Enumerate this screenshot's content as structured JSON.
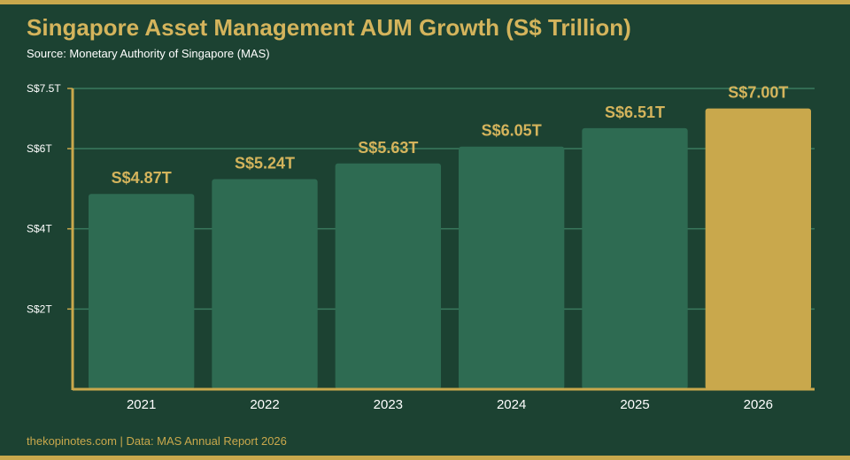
{
  "header": {
    "title": "Singapore Asset Management AUM Growth (S$ Trillion)",
    "source": "Source: Monetary Authority of Singapore (MAS)"
  },
  "footer": {
    "text": "thekopinotes.com | Data: MAS Annual Report 2026"
  },
  "colors": {
    "background": "#1c4232",
    "bar": "#2e6b52",
    "highlight_bar": "#c9a84c",
    "accent": "#d4b45c",
    "gridline": "#3a7a5e"
  },
  "chart_data": {
    "type": "bar",
    "title": "Singapore Asset Management AUM Growth (S$ Trillion)",
    "xlabel": "",
    "ylabel": "",
    "categories": [
      "2021",
      "2022",
      "2023",
      "2024",
      "2025",
      "2026"
    ],
    "values": [
      4.87,
      5.24,
      5.63,
      6.05,
      6.51,
      7.0
    ],
    "value_labels": [
      "S$4.87T",
      "S$5.24T",
      "S$5.63T",
      "S$6.05T",
      "S$6.51T",
      "S$7.00T"
    ],
    "highlight_index": 5,
    "ylim": [
      0,
      7.5
    ],
    "yticks": [
      {
        "value": 2,
        "label": "S$2T"
      },
      {
        "value": 4,
        "label": "S$4T"
      },
      {
        "value": 6,
        "label": "S$6T"
      },
      {
        "value": 7.5,
        "label": "S$7.5T"
      }
    ],
    "grid": true,
    "legend": "none"
  }
}
